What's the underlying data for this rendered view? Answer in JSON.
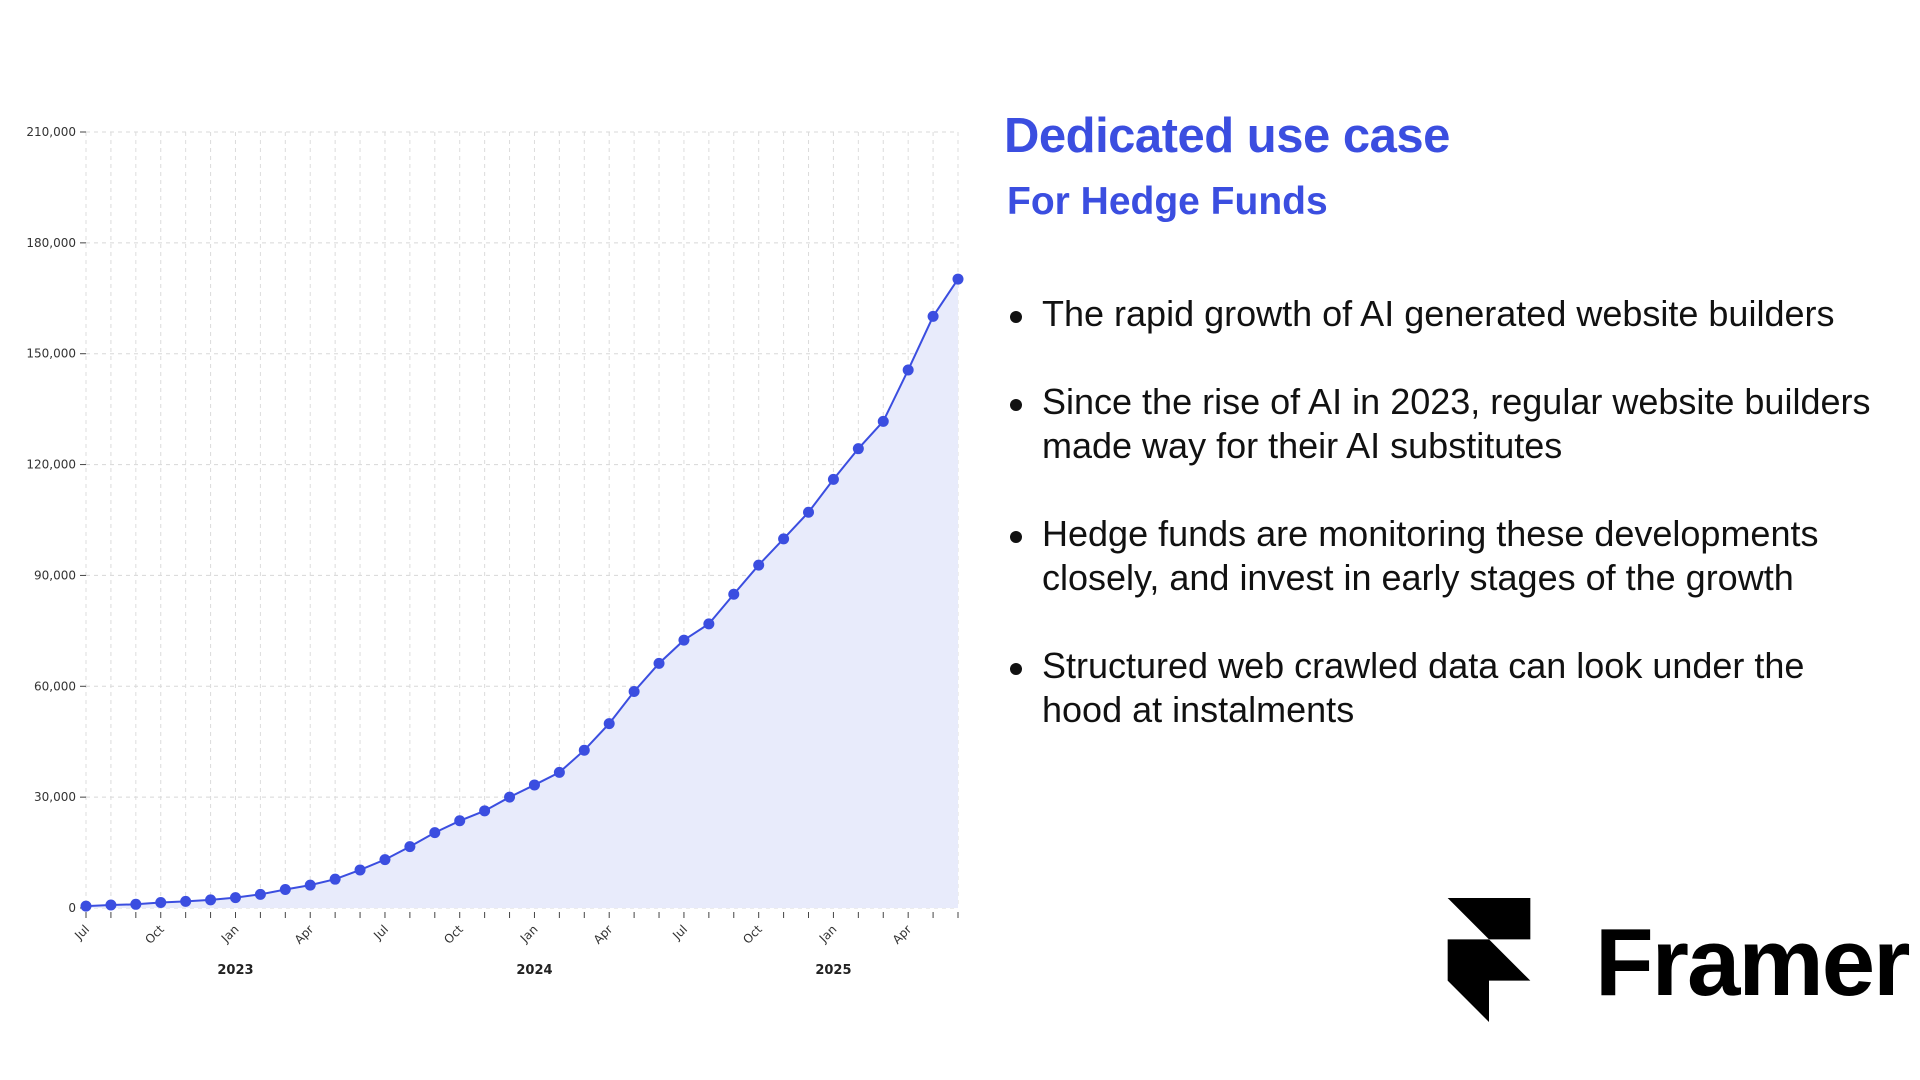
{
  "slide": {
    "headline": "Dedicated use case",
    "subhead": "For Hedge Funds",
    "bullets": [
      "The rapid growth of AI generated website builders",
      "Since the rise of AI in 2023, regular website builders made way for their AI substitutes",
      "Hedge funds are monitoring these developments closely, and invest in early stages of the growth",
      "Structured web crawled data can look under the hood at instalments"
    ],
    "brand": "Framer",
    "logo_icon": "framer-logo-icon",
    "accent_color": "#3b4ee0"
  },
  "chart_data": {
    "type": "area",
    "title": "",
    "xlabel": "",
    "ylabel": "",
    "ylim": [
      0,
      210000
    ],
    "yticks": [
      0,
      30000,
      60000,
      90000,
      120000,
      150000,
      180000,
      210000
    ],
    "ytick_labels": [
      "0",
      "30,000",
      "60,000",
      "90,000",
      "120,000",
      "150,000",
      "180,000",
      "210,000"
    ],
    "x_month_ticks": [
      {
        "index": 0,
        "label": "Jul"
      },
      {
        "index": 3,
        "label": "Oct"
      },
      {
        "index": 6,
        "label": "Jan"
      },
      {
        "index": 9,
        "label": "Apr"
      },
      {
        "index": 12,
        "label": "Jul"
      },
      {
        "index": 15,
        "label": "Oct"
      },
      {
        "index": 18,
        "label": "Jan"
      },
      {
        "index": 21,
        "label": "Apr"
      },
      {
        "index": 24,
        "label": "Jul"
      },
      {
        "index": 27,
        "label": "Oct"
      },
      {
        "index": 30,
        "label": "Jan"
      },
      {
        "index": 33,
        "label": "Apr"
      }
    ],
    "x_year_labels": [
      {
        "index": 6,
        "label": "2023"
      },
      {
        "index": 18,
        "label": "2024"
      },
      {
        "index": 30,
        "label": "2025"
      }
    ],
    "x": [
      "2022-07",
      "2022-08",
      "2022-09",
      "2022-10",
      "2022-11",
      "2022-12",
      "2023-01",
      "2023-02",
      "2023-03",
      "2023-04",
      "2023-05",
      "2023-06",
      "2023-07",
      "2023-08",
      "2023-09",
      "2023-10",
      "2023-11",
      "2023-12",
      "2024-01",
      "2024-02",
      "2024-03",
      "2024-04",
      "2024-05",
      "2024-06",
      "2024-07",
      "2024-08",
      "2024-09",
      "2024-10",
      "2024-11",
      "2024-12",
      "2025-01",
      "2025-02",
      "2025-03",
      "2025-04",
      "2025-05",
      "2025-06"
    ],
    "values": [
      500,
      800,
      1000,
      1500,
      1800,
      2200,
      2800,
      3700,
      5000,
      6200,
      7800,
      10300,
      13100,
      16600,
      20400,
      23600,
      26300,
      30000,
      33300,
      36700,
      42700,
      49900,
      58600,
      66200,
      72500,
      76900,
      84900,
      92800,
      99900,
      107100,
      116000,
      124300,
      131700,
      145600,
      160100,
      170200
    ],
    "grid": true,
    "legend": "none",
    "line_color": "#3b4ee0",
    "fill_color": "#e8ebfb"
  }
}
